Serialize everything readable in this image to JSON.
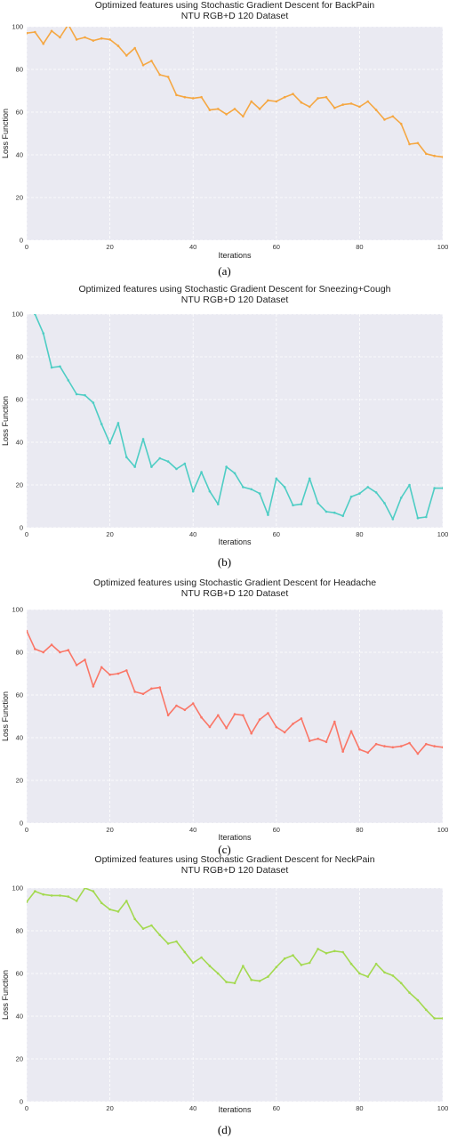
{
  "charts": [
    {
      "caption": "(a)",
      "chart_data": {
        "type": "line",
        "title": "Optimized features using Stochastic Gradient Descent for BackPain",
        "subtitle": "NTU RGB+D 120 Dataset",
        "xlabel": "Iterations",
        "ylabel": "Loss Function",
        "xlim": [
          0,
          100
        ],
        "ylim": [
          0,
          100
        ],
        "xticks": [
          "0",
          "20",
          "40",
          "60",
          "80",
          "100"
        ],
        "yticks": [
          "0",
          "20",
          "40",
          "60",
          "80",
          "100"
        ],
        "grid": true,
        "color": "#f5a742",
        "markers": true,
        "x": [
          0,
          2,
          4,
          6,
          8,
          10,
          12,
          14,
          16,
          18,
          20,
          22,
          24,
          26,
          28,
          30,
          32,
          34,
          36,
          38,
          40,
          42,
          44,
          46,
          48,
          50,
          52,
          54,
          56,
          58,
          60,
          62,
          64,
          66,
          68,
          70,
          72,
          74,
          76,
          78,
          80,
          82,
          84,
          86,
          88,
          90,
          92,
          94,
          96,
          98,
          100
        ],
        "values": [
          97,
          97.5,
          92,
          98,
          95,
          101,
          94,
          95,
          93.5,
          94.5,
          94,
          91,
          86.5,
          90,
          82,
          84,
          77.5,
          76.5,
          68,
          67,
          66.5,
          67,
          61,
          61.5,
          59,
          61.5,
          58,
          65,
          61.5,
          65.5,
          65,
          67,
          68.5,
          64.5,
          62.5,
          66.5,
          67,
          62,
          63.5,
          64,
          62.5,
          65,
          61,
          56.5,
          58,
          54.5,
          45,
          45.5,
          40.5,
          39.5,
          39
        ]
      }
    },
    {
      "caption": "(b)",
      "chart_data": {
        "type": "line",
        "title": "Optimized features using Stochastic Gradient Descent for Sneezing+Cough",
        "subtitle": "NTU RGB+D 120 Dataset",
        "xlabel": "Iterations",
        "ylabel": "Loss Function",
        "xlim": [
          0,
          100
        ],
        "ylim": [
          0,
          100
        ],
        "xticks": [
          "0",
          "20",
          "40",
          "60",
          "80",
          "100"
        ],
        "yticks": [
          "0",
          "20",
          "40",
          "60",
          "80",
          "100"
        ],
        "grid": true,
        "color": "#4ecdc4",
        "markers": true,
        "x": [
          2,
          4,
          6,
          8,
          10,
          12,
          14,
          16,
          18,
          20,
          22,
          24,
          26,
          28,
          30,
          32,
          34,
          36,
          38,
          40,
          42,
          44,
          46,
          48,
          50,
          52,
          54,
          56,
          58,
          60,
          62,
          64,
          66,
          68,
          70,
          72,
          74,
          76,
          78,
          80,
          82,
          84,
          86,
          88,
          90,
          92,
          94,
          96,
          98,
          100
        ],
        "values": [
          100,
          91,
          75,
          75.5,
          69,
          62.5,
          62,
          58.5,
          48.5,
          39.5,
          49,
          33,
          28.5,
          41.5,
          28.5,
          32.5,
          31,
          27.5,
          30,
          17,
          26,
          17,
          11,
          28.5,
          25.5,
          19,
          18,
          16,
          6,
          23,
          19,
          10.5,
          11,
          23,
          11.5,
          7.5,
          7,
          5.5,
          14.5,
          16,
          19,
          16.5,
          11.5,
          4,
          14,
          20,
          4.5,
          5,
          18.5,
          18.5
        ]
      }
    },
    {
      "caption": "(c)",
      "chart_data": {
        "type": "line",
        "title": "Optimized features using Stochastic Gradient Descent for Headache",
        "subtitle": "NTU RGB+D 120 Dataset",
        "xlabel": "Iterations",
        "ylabel": "Loss Function",
        "xlim": [
          0,
          100
        ],
        "ylim": [
          0,
          100
        ],
        "xticks": [
          "0",
          "20",
          "40",
          "60",
          "80",
          "100"
        ],
        "yticks": [
          "0",
          "20",
          "40",
          "60",
          "80",
          "100"
        ],
        "grid": true,
        "color": "#fa7667",
        "markers": true,
        "x": [
          0,
          2,
          4,
          6,
          8,
          10,
          12,
          14,
          16,
          18,
          20,
          22,
          24,
          26,
          28,
          30,
          32,
          34,
          36,
          38,
          40,
          42,
          44,
          46,
          48,
          50,
          52,
          54,
          56,
          58,
          60,
          62,
          64,
          66,
          68,
          70,
          72,
          74,
          76,
          78,
          80,
          82,
          84,
          86,
          88,
          90,
          92,
          94,
          96,
          98,
          100
        ],
        "values": [
          90,
          81.5,
          80,
          83.5,
          80,
          81,
          74,
          76.5,
          64,
          73,
          69.5,
          70,
          71.5,
          61.5,
          60.5,
          63,
          63.5,
          50.5,
          55,
          53,
          56,
          49.5,
          45,
          50.5,
          44.5,
          51,
          50.5,
          42,
          48.5,
          51.5,
          45,
          42.5,
          46.5,
          49,
          38.5,
          39.5,
          38,
          47.5,
          33.5,
          43,
          34.5,
          33,
          37,
          36,
          35.5,
          36,
          37.5,
          32.5,
          37,
          36,
          35.5
        ]
      }
    },
    {
      "caption": "(d)",
      "chart_data": {
        "type": "line",
        "title": "Optimized features using Stochastic Gradient Descent for NeckPain",
        "subtitle": "NTU RGB+D 120 Dataset",
        "xlabel": "Iterations",
        "ylabel": "Loss Function",
        "xlim": [
          0,
          100
        ],
        "ylim": [
          0,
          100
        ],
        "xticks": [
          "0",
          "20",
          "40",
          "60",
          "80",
          "100"
        ],
        "yticks": [
          "0",
          "20",
          "40",
          "60",
          "80",
          "100"
        ],
        "grid": true,
        "color": "#a3d94f",
        "markers": true,
        "x": [
          0,
          2,
          4,
          6,
          8,
          10,
          12,
          14,
          16,
          18,
          20,
          22,
          24,
          26,
          28,
          30,
          32,
          34,
          36,
          38,
          40,
          42,
          44,
          46,
          48,
          50,
          52,
          54,
          56,
          58,
          60,
          62,
          64,
          66,
          68,
          70,
          72,
          74,
          76,
          78,
          80,
          82,
          84,
          86,
          88,
          90,
          92,
          94,
          96,
          98,
          100
        ],
        "values": [
          93.5,
          98.5,
          97,
          96.5,
          96.5,
          96,
          94,
          100,
          98.5,
          93,
          90,
          89,
          94,
          85.5,
          81,
          82.5,
          78,
          74,
          75,
          70,
          65,
          67.5,
          63.5,
          60,
          56,
          55.5,
          63.5,
          57,
          56.5,
          58.5,
          63,
          67,
          68.5,
          64,
          65,
          71.5,
          69.5,
          70.5,
          70,
          64.5,
          60,
          58.5,
          64.5,
          60.5,
          59,
          55.5,
          51,
          47.5,
          43,
          39,
          39
        ]
      }
    }
  ]
}
